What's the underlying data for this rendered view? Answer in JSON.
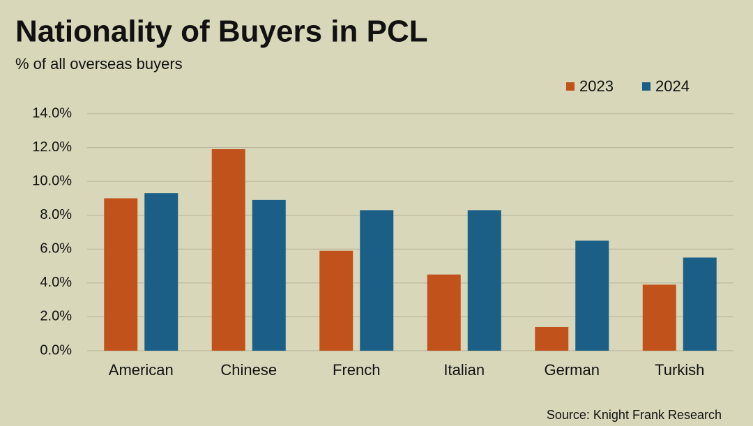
{
  "chart_data": {
    "type": "bar",
    "title": "Nationality of Buyers in PCL",
    "subtitle": "% of all overseas buyers",
    "source": "Source: Knight Frank Research",
    "categories": [
      "American",
      "Chinese",
      "French",
      "Italian",
      "German",
      "Turkish"
    ],
    "series": [
      {
        "name": "2023",
        "color": "#c1521b",
        "values": [
          9.0,
          11.9,
          5.9,
          4.5,
          1.4,
          3.9
        ]
      },
      {
        "name": "2024",
        "color": "#1b5f86",
        "values": [
          9.3,
          8.9,
          8.3,
          8.3,
          6.5,
          5.5
        ]
      }
    ],
    "ylim": [
      0,
      14
    ],
    "yticks": [
      {
        "value": 0,
        "label": "0.0%"
      },
      {
        "value": 2,
        "label": "2.0%"
      },
      {
        "value": 4,
        "label": "4.0%"
      },
      {
        "value": 6,
        "label": "6.0%"
      },
      {
        "value": 8,
        "label": "8.0%"
      },
      {
        "value": 10,
        "label": "10.0%"
      },
      {
        "value": 12,
        "label": "12.0%"
      },
      {
        "value": 14,
        "label": "14.0%"
      }
    ],
    "grid": true,
    "legend": "top-right"
  }
}
